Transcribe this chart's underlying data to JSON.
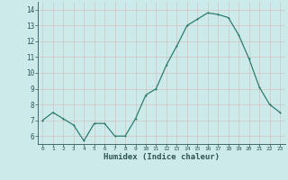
{
  "x": [
    0,
    1,
    2,
    3,
    4,
    5,
    6,
    7,
    8,
    9,
    10,
    11,
    12,
    13,
    14,
    15,
    16,
    17,
    18,
    19,
    20,
    21,
    22,
    23
  ],
  "y": [
    7.0,
    7.5,
    7.1,
    6.7,
    5.7,
    6.8,
    6.8,
    6.0,
    6.0,
    7.1,
    8.6,
    9.0,
    10.5,
    11.7,
    13.0,
    13.4,
    13.8,
    13.7,
    13.5,
    12.4,
    10.9,
    9.1,
    8.0,
    7.5
  ],
  "line_color": "#2e7d6e",
  "marker": "D",
  "marker_size": 1.8,
  "line_width": 0.9,
  "bg_color": "#cceaea",
  "grid_color": "#b0c8c8",
  "grid_color_minor": "#d4b8b8",
  "xlabel": "Humidex (Indice chaleur)",
  "xlabel_fontsize": 6.5,
  "yticks": [
    6,
    7,
    8,
    9,
    10,
    11,
    12,
    13,
    14
  ],
  "ylim": [
    5.5,
    14.5
  ],
  "xlim": [
    -0.5,
    23.5
  ]
}
